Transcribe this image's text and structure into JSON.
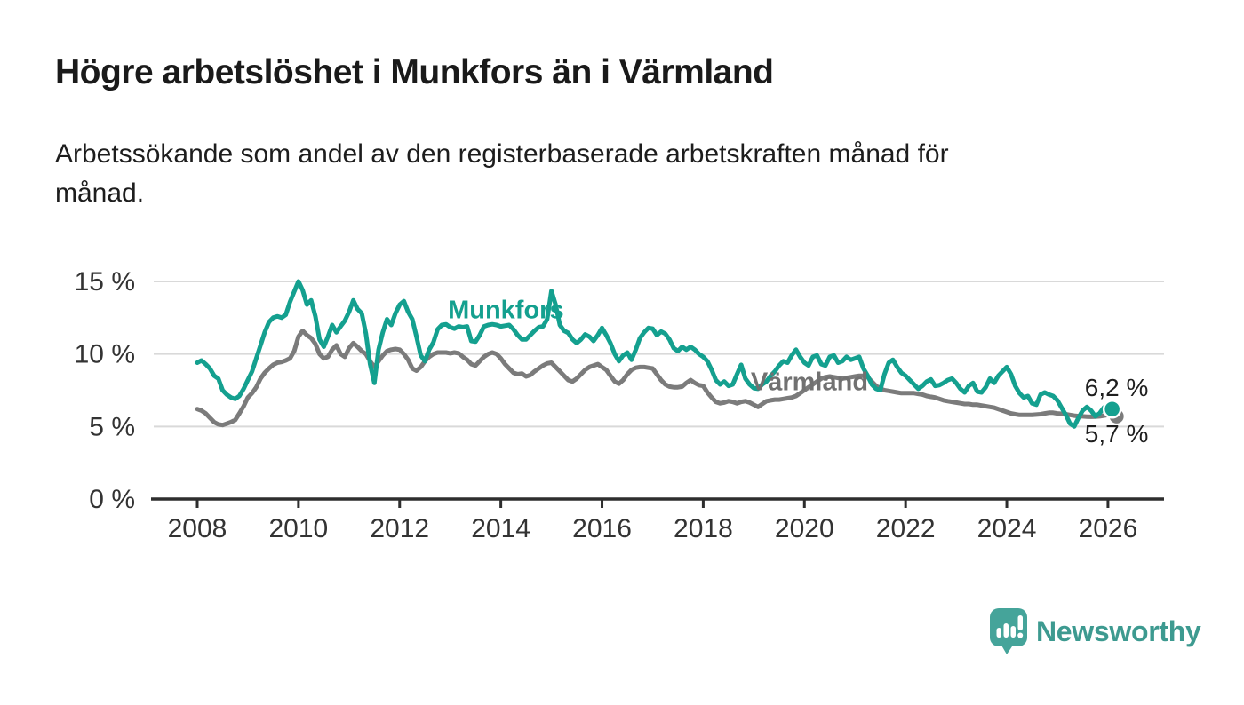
{
  "header": {
    "title": "Högre arbetslöshet i Munkfors än i Värmland",
    "subtitle": "Arbetssökande som andel av den registerbaserade arbetskraften månad för\nmånad."
  },
  "chart_data": {
    "type": "line",
    "title": "Högre arbetslöshet i Munkfors än i Värmland",
    "subtitle": "Arbetssökande som andel av den registerbaserade arbetskraften månad för månad.",
    "xlabel": "",
    "ylabel": "",
    "x_start_year": 2008,
    "step_months": 1,
    "xlim": [
      2007.1,
      2027.1
    ],
    "ylim": [
      0,
      15.5
    ],
    "grid": "horizontal",
    "legend_position": "inline-labels",
    "x_ticks": [
      2008,
      2010,
      2012,
      2014,
      2016,
      2018,
      2020,
      2022,
      2024,
      2026
    ],
    "y_ticks": [
      {
        "value": 0,
        "label": "0 %"
      },
      {
        "value": 5,
        "label": "5 %"
      },
      {
        "value": 10,
        "label": "10 %"
      },
      {
        "value": 15,
        "label": "15 %"
      }
    ],
    "colors": {
      "munkfors": "#14a08f",
      "varmland": "#7b7b7b",
      "grid": "#d9d9d9",
      "axis": "#2e2e2e"
    },
    "series": [
      {
        "name": "Värmland",
        "color": "#7b7b7b",
        "values": [
          6.2,
          6.1,
          5.9,
          5.6,
          5.3,
          5.15,
          5.1,
          5.2,
          5.3,
          5.45,
          5.9,
          6.4,
          7.0,
          7.3,
          7.7,
          8.3,
          8.7,
          9.0,
          9.25,
          9.4,
          9.45,
          9.55,
          9.7,
          10.2,
          11.2,
          11.6,
          11.3,
          11.1,
          10.7,
          10.0,
          9.7,
          9.8,
          10.3,
          10.6,
          10.0,
          9.8,
          10.4,
          10.75,
          10.5,
          10.2,
          10.0,
          9.5,
          9.1,
          9.5,
          9.9,
          10.2,
          10.3,
          10.35,
          10.3,
          10.0,
          9.6,
          9.0,
          8.85,
          9.1,
          9.5,
          9.8,
          10.0,
          10.1,
          10.1,
          10.1,
          10.05,
          10.1,
          10.05,
          9.8,
          9.6,
          9.3,
          9.2,
          9.5,
          9.8,
          10.0,
          10.1,
          10.0,
          9.7,
          9.3,
          9.0,
          8.7,
          8.6,
          8.65,
          8.45,
          8.55,
          8.8,
          9.0,
          9.2,
          9.35,
          9.4,
          9.1,
          8.8,
          8.5,
          8.2,
          8.1,
          8.3,
          8.6,
          8.9,
          9.1,
          9.2,
          9.3,
          9.1,
          8.9,
          8.5,
          8.1,
          7.95,
          8.2,
          8.6,
          8.9,
          9.05,
          9.1,
          9.1,
          9.05,
          9.0,
          8.6,
          8.2,
          7.9,
          7.75,
          7.7,
          7.7,
          7.75,
          8.0,
          8.2,
          8.0,
          7.85,
          7.8,
          7.35,
          7.0,
          6.7,
          6.6,
          6.65,
          6.75,
          6.7,
          6.6,
          6.7,
          6.75,
          6.65,
          6.5,
          6.35,
          6.55,
          6.75,
          6.8,
          6.85,
          6.85,
          6.9,
          6.95,
          7.0,
          7.1,
          7.3,
          7.5,
          7.7,
          7.9,
          8.1,
          8.3,
          8.4,
          8.45,
          8.4,
          8.35,
          8.3,
          8.35,
          8.4,
          8.45,
          8.5,
          8.5,
          8.4,
          8.1,
          7.8,
          7.6,
          7.5,
          7.45,
          7.4,
          7.35,
          7.3,
          7.3,
          7.3,
          7.3,
          7.25,
          7.2,
          7.1,
          7.05,
          7.0,
          6.9,
          6.8,
          6.75,
          6.7,
          6.65,
          6.6,
          6.55,
          6.55,
          6.5,
          6.5,
          6.45,
          6.4,
          6.35,
          6.3,
          6.2,
          6.1,
          6.0,
          5.9,
          5.85,
          5.8,
          5.8,
          5.8,
          5.8,
          5.82,
          5.85,
          5.9,
          5.95,
          5.95,
          5.9,
          5.88,
          5.85,
          5.8,
          5.75,
          5.72,
          5.7,
          5.68,
          5.67,
          5.68,
          5.7,
          5.75,
          5.8,
          5.7
        ]
      },
      {
        "name": "Munkfors",
        "color": "#14a08f",
        "values": [
          9.4,
          9.55,
          9.3,
          9.0,
          8.5,
          8.3,
          7.5,
          7.2,
          7.0,
          6.9,
          7.1,
          7.6,
          8.2,
          8.8,
          9.7,
          10.6,
          11.5,
          12.2,
          12.5,
          12.6,
          12.5,
          12.7,
          13.6,
          14.3,
          15.0,
          14.4,
          13.4,
          13.7,
          12.6,
          11.0,
          10.5,
          11.2,
          12.0,
          11.5,
          11.9,
          12.3,
          12.9,
          13.7,
          13.1,
          12.8,
          11.4,
          9.3,
          8.0,
          10.3,
          11.5,
          12.4,
          12.0,
          12.8,
          13.4,
          13.65,
          12.9,
          12.4,
          11.2,
          9.9,
          9.5,
          10.3,
          10.8,
          11.7,
          12.0,
          12.05,
          11.85,
          11.75,
          11.9,
          11.85,
          11.9,
          10.9,
          10.85,
          11.3,
          11.9,
          12.0,
          12.05,
          12.0,
          11.9,
          11.95,
          12.0,
          11.7,
          11.3,
          11.0,
          11.0,
          11.3,
          11.6,
          11.85,
          11.9,
          12.4,
          14.35,
          13.4,
          12.0,
          11.6,
          11.45,
          11.0,
          10.75,
          11.0,
          11.35,
          11.2,
          10.9,
          11.3,
          11.8,
          11.3,
          10.75,
          10.0,
          9.5,
          9.9,
          10.1,
          9.6,
          10.3,
          11.1,
          11.5,
          11.8,
          11.75,
          11.3,
          11.55,
          11.4,
          11.0,
          10.4,
          10.2,
          10.5,
          10.3,
          10.5,
          10.3,
          10.0,
          9.8,
          9.5,
          8.9,
          8.2,
          7.9,
          8.1,
          7.8,
          7.9,
          8.6,
          9.25,
          8.3,
          7.9,
          7.65,
          7.6,
          7.9,
          8.1,
          8.5,
          8.8,
          9.2,
          9.5,
          9.4,
          9.9,
          10.3,
          9.8,
          9.4,
          9.2,
          9.8,
          9.9,
          9.3,
          9.2,
          9.8,
          9.9,
          9.4,
          9.5,
          9.8,
          9.6,
          9.7,
          9.8,
          9.0,
          8.5,
          7.9,
          7.6,
          7.5,
          8.6,
          9.4,
          9.6,
          9.1,
          8.7,
          8.5,
          8.2,
          7.9,
          7.6,
          7.8,
          8.1,
          8.25,
          7.8,
          7.85,
          8.0,
          8.2,
          8.3,
          8.0,
          7.6,
          7.35,
          7.8,
          8.0,
          7.4,
          7.35,
          7.7,
          8.3,
          8.0,
          8.5,
          8.8,
          9.1,
          8.6,
          7.8,
          7.3,
          7.0,
          7.1,
          6.6,
          6.5,
          7.2,
          7.35,
          7.2,
          7.1,
          6.8,
          6.3,
          5.8,
          5.2,
          5.0,
          5.6,
          6.1,
          6.35,
          6.1,
          5.7,
          5.9,
          6.3,
          6.5,
          6.2
        ]
      }
    ],
    "series_labels": [
      {
        "text": "Munkfors",
        "year": 2014.1,
        "pct": 13.0,
        "color": "#14a08f"
      },
      {
        "text": "Värmland",
        "year": 2020.1,
        "pct": 8.05,
        "color": "#717171"
      }
    ],
    "end_labels": [
      {
        "text": "6,2 %",
        "year": 2026.17,
        "pct": 7.65
      },
      {
        "text": "5,7 %",
        "year": 2026.17,
        "pct": 4.5
      }
    ],
    "end_values": {
      "munkfors": "6,2 %",
      "varmland": "5,7 %"
    }
  },
  "footer": {
    "brand": "Newsworthy",
    "brand_color": "#3d9a90",
    "icon_color": "#45a49a"
  }
}
